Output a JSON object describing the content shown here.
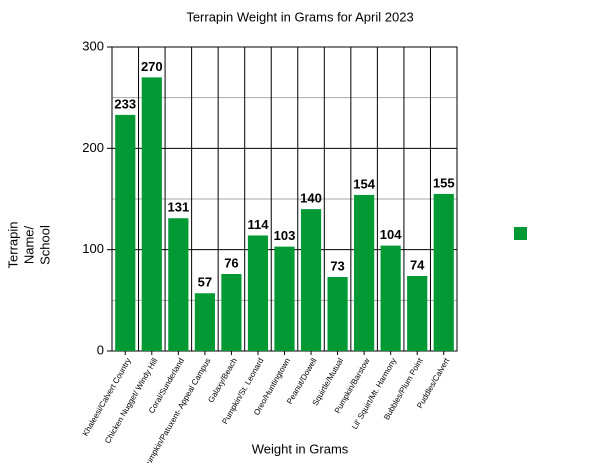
{
  "chart_data": {
    "type": "bar",
    "title": "Terrapin Weight in Grams for April 2023",
    "x_label": "Weight in Grams",
    "y_label": [
      "Terrapin",
      "Name/",
      "School"
    ],
    "categories": [
      "Khaleesi/Calvert Country",
      "Chicken Nugget/ Windy Hill",
      "Coral/Sunderland",
      "Pumpkin/Patuxent- Appeal Campus",
      "Galaxy/Beach",
      "Pumpkin/St. Leonard",
      "Oreo/Huntingtown",
      "Peanut/Dowell",
      "Squirtle/Mutual",
      "Pumpkin/Barstow",
      "Lil' Squirt/Mt. Harmony",
      "Bubbles/Plum Point",
      "Puddles/Calvert"
    ],
    "values": [
      233,
      270,
      131,
      57,
      76,
      114,
      103,
      140,
      73,
      154,
      104,
      74,
      155
    ],
    "color": "#009933",
    "ylim": [
      0,
      300
    ],
    "yticks": [
      0,
      100,
      200,
      300
    ],
    "minor_yticks": [
      50,
      150,
      250
    ],
    "grid": true,
    "legend": "right"
  }
}
